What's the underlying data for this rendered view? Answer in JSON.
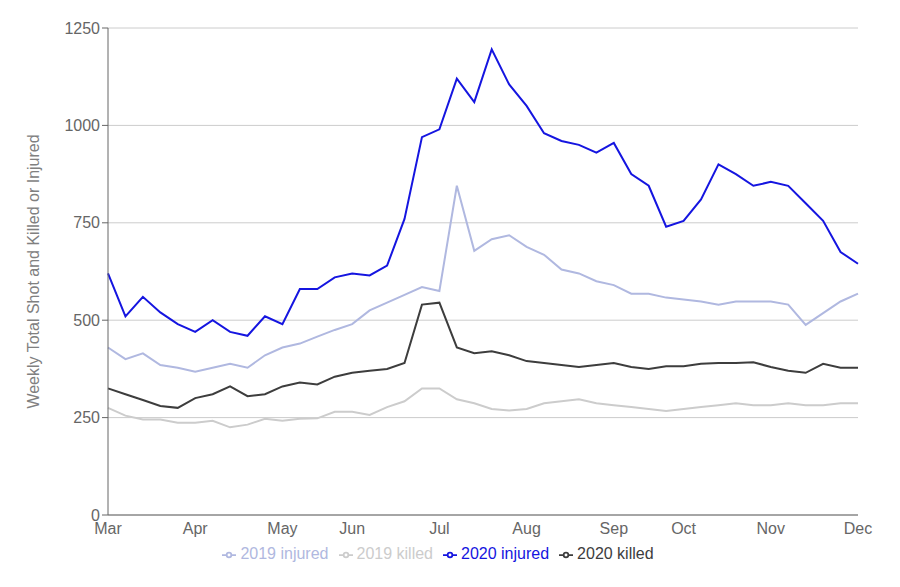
{
  "chart_data": {
    "type": "line",
    "ylabel": "Weekly Total Shot and Killed or Injured",
    "categories": [
      "Mar",
      null,
      null,
      null,
      null,
      "Apr",
      null,
      null,
      null,
      null,
      "May",
      null,
      null,
      null,
      "Jun",
      null,
      null,
      null,
      null,
      "Jul",
      null,
      null,
      null,
      null,
      "Aug",
      null,
      null,
      null,
      null,
      "Sep",
      null,
      null,
      null,
      "Oct",
      null,
      null,
      null,
      null,
      "Nov",
      null,
      null,
      null,
      null,
      "Dec"
    ],
    "series": [
      {
        "name": "2019 killed",
        "color": "#cccccc",
        "values": [
          275,
          255,
          245,
          245,
          237,
          237,
          242,
          225,
          232,
          247,
          242,
          247,
          248,
          265,
          265,
          257,
          277,
          292,
          325,
          325,
          297,
          287,
          272,
          268,
          272,
          287,
          292,
          297,
          287,
          282,
          277,
          272,
          267,
          272,
          277,
          282,
          287,
          282,
          282,
          287,
          282,
          282,
          287,
          287
        ]
      },
      {
        "name": "2019 injured",
        "color": "#b0b8e0",
        "values": [
          430,
          400,
          415,
          385,
          378,
          368,
          378,
          388,
          378,
          410,
          430,
          440,
          458,
          475,
          490,
          525,
          545,
          565,
          585,
          575,
          845,
          678,
          708,
          718,
          688,
          668,
          630,
          620,
          600,
          590,
          568,
          568,
          558,
          553,
          548,
          540,
          548,
          548,
          548,
          540,
          488,
          518,
          548,
          568
        ]
      },
      {
        "name": "2020 killed",
        "color": "#3d3d3d",
        "values": [
          325,
          310,
          295,
          280,
          275,
          300,
          310,
          330,
          305,
          310,
          330,
          340,
          335,
          355,
          365,
          370,
          375,
          390,
          540,
          545,
          430,
          415,
          420,
          410,
          395,
          390,
          385,
          380,
          385,
          390,
          380,
          375,
          382,
          382,
          388,
          390,
          390,
          392,
          380,
          370,
          365,
          388,
          378,
          378
        ]
      },
      {
        "name": "2020 injured",
        "color": "#1515e0",
        "values": [
          620,
          510,
          560,
          520,
          490,
          470,
          500,
          470,
          460,
          510,
          490,
          580,
          580,
          610,
          620,
          615,
          640,
          760,
          970,
          990,
          1120,
          1060,
          1195,
          1105,
          1050,
          980,
          960,
          950,
          930,
          955,
          875,
          845,
          740,
          755,
          810,
          900,
          875,
          845,
          855,
          845,
          800,
          755,
          675,
          645
        ]
      }
    ],
    "ylim": [
      0,
      1250
    ],
    "yticks": [
      0,
      250,
      500,
      750,
      1000,
      1250
    ],
    "grid": true,
    "legend": "bottom"
  }
}
